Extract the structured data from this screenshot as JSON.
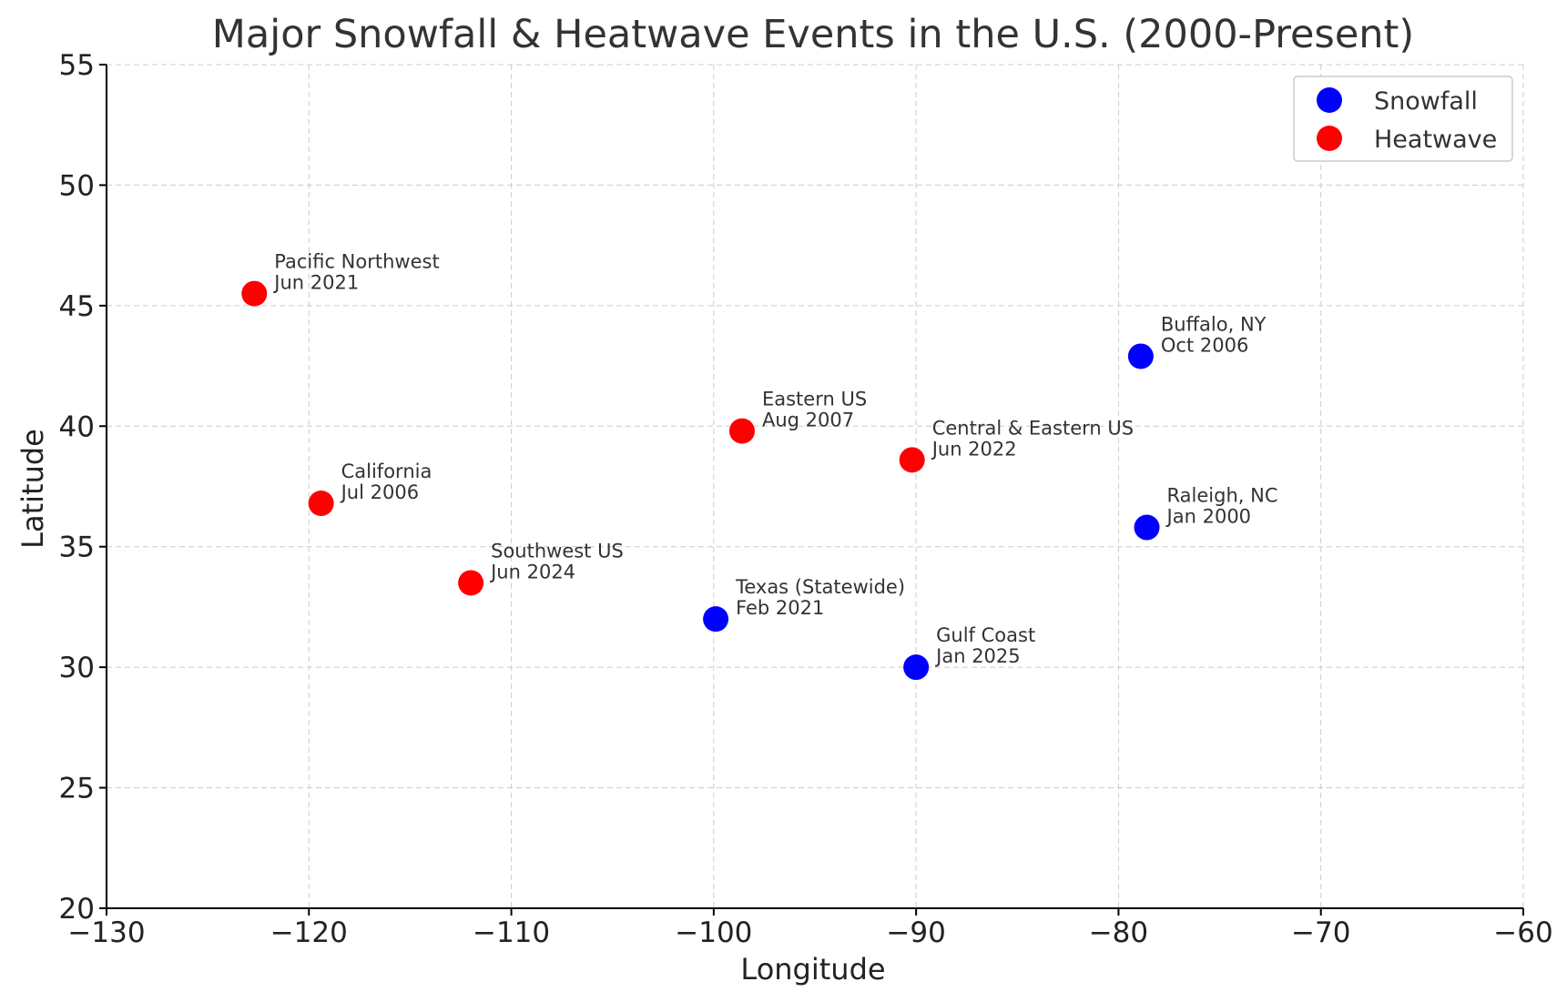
{
  "chart_data": {
    "type": "scatter",
    "title": "Major Snowfall & Heatwave Events in the U.S. (2000-Present)",
    "xlabel": "Longitude",
    "ylabel": "Latitude",
    "xlim": [
      -130,
      -60
    ],
    "ylim": [
      20,
      55
    ],
    "xticks": [
      -130,
      -120,
      -110,
      -100,
      -90,
      -80,
      -70,
      -60
    ],
    "yticks": [
      20,
      25,
      30,
      35,
      40,
      45,
      50,
      55
    ],
    "grid": true,
    "legend_position": "top-right",
    "series": [
      {
        "name": "Snowfall",
        "color": "#0000ff",
        "points": [
          {
            "x": -78.9,
            "y": 42.9,
            "label": "Buffalo, NY",
            "date": "Oct 2006"
          },
          {
            "x": -78.6,
            "y": 35.8,
            "label": "Raleigh, NC",
            "date": "Jan 2000"
          },
          {
            "x": -99.9,
            "y": 32.0,
            "label": "Texas (Statewide)",
            "date": "Feb 2021"
          },
          {
            "x": -90.0,
            "y": 30.0,
            "label": "Gulf Coast",
            "date": "Jan 2025"
          }
        ]
      },
      {
        "name": "Heatwave",
        "color": "#ff0000",
        "points": [
          {
            "x": -122.7,
            "y": 45.5,
            "label": "Pacific Northwest",
            "date": "Jun 2021"
          },
          {
            "x": -119.4,
            "y": 36.8,
            "label": "California",
            "date": "Jul 2006"
          },
          {
            "x": -112.0,
            "y": 33.5,
            "label": "Southwest US",
            "date": "Jun 2024"
          },
          {
            "x": -98.6,
            "y": 39.8,
            "label": "Eastern US",
            "date": "Aug 2007"
          },
          {
            "x": -90.2,
            "y": 38.6,
            "label": "Central & Eastern US",
            "date": "Jun 2022"
          }
        ]
      }
    ]
  }
}
